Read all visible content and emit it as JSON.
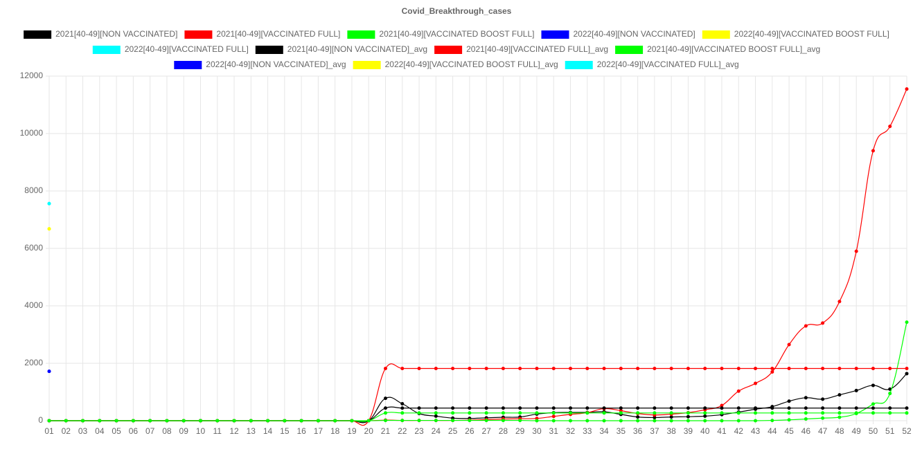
{
  "chart_data": {
    "type": "line",
    "title": "Covid_Breakthrough_cases",
    "categories": [
      "01",
      "02",
      "03",
      "04",
      "05",
      "06",
      "07",
      "08",
      "09",
      "10",
      "11",
      "12",
      "13",
      "14",
      "15",
      "16",
      "17",
      "18",
      "19",
      "20",
      "21",
      "22",
      "23",
      "24",
      "25",
      "26",
      "27",
      "28",
      "29",
      "30",
      "31",
      "32",
      "33",
      "34",
      "35",
      "36",
      "37",
      "38",
      "39",
      "40",
      "41",
      "42",
      "43",
      "44",
      "45",
      "46",
      "47",
      "48",
      "49",
      "50",
      "51",
      "52"
    ],
    "ylim": [
      0,
      12000
    ],
    "yticks": [
      0,
      2000,
      4000,
      6000,
      8000,
      10000,
      12000
    ],
    "grid": true,
    "series": [
      {
        "name": "2021[40-49][NON VACCINATED]",
        "color": "#000000",
        "values": [
          0,
          0,
          0,
          0,
          0,
          0,
          0,
          0,
          0,
          0,
          0,
          0,
          0,
          0,
          0,
          0,
          0,
          0,
          0,
          0,
          780,
          590,
          250,
          160,
          90,
          80,
          100,
          120,
          130,
          230,
          280,
          290,
          290,
          310,
          220,
          130,
          110,
          130,
          140,
          160,
          210,
          300,
          400,
          490,
          680,
          800,
          750,
          900,
          1050,
          1230,
          1100,
          1640
        ]
      },
      {
        "name": "2021[40-49][VACCINATED FULL]",
        "color": "#ff0000",
        "values": [
          0,
          0,
          0,
          0,
          0,
          0,
          0,
          0,
          0,
          0,
          0,
          0,
          0,
          0,
          0,
          0,
          0,
          0,
          0,
          0,
          20,
          10,
          10,
          10,
          10,
          20,
          40,
          60,
          70,
          80,
          150,
          220,
          280,
          420,
          350,
          250,
          200,
          230,
          280,
          380,
          530,
          1030,
          1300,
          1700,
          2650,
          3300,
          3400,
          4150,
          5900,
          9400,
          10250,
          11550
        ]
      },
      {
        "name": "2021[40-49][VACCINATED BOOST FULL]",
        "color": "#00ff00",
        "values": [
          0,
          0,
          0,
          0,
          0,
          0,
          0,
          0,
          0,
          0,
          0,
          0,
          0,
          0,
          0,
          0,
          0,
          0,
          0,
          0,
          10,
          10,
          10,
          10,
          10,
          10,
          10,
          10,
          10,
          0,
          0,
          0,
          0,
          0,
          0,
          0,
          0,
          0,
          0,
          0,
          0,
          0,
          0,
          10,
          30,
          60,
          90,
          120,
          250,
          580,
          950,
          3430
        ]
      },
      {
        "name": "2022[40-49][NON VACCINATED]",
        "color": "#0000ff",
        "values": [
          1720,
          null,
          null,
          null,
          null,
          null,
          null,
          null,
          null,
          null,
          null,
          null,
          null,
          null,
          null,
          null,
          null,
          null,
          null,
          null,
          null,
          null,
          null,
          null,
          null,
          null,
          null,
          null,
          null,
          null,
          null,
          null,
          null,
          null,
          null,
          null,
          null,
          null,
          null,
          null,
          null,
          null,
          null,
          null,
          null,
          null,
          null,
          null,
          null,
          null,
          null,
          null
        ]
      },
      {
        "name": "2022[40-49][VACCINATED BOOST FULL]",
        "color": "#ffff00",
        "values": [
          6680,
          null,
          null,
          null,
          null,
          null,
          null,
          null,
          null,
          null,
          null,
          null,
          null,
          null,
          null,
          null,
          null,
          null,
          null,
          null,
          null,
          null,
          null,
          null,
          null,
          null,
          null,
          null,
          null,
          null,
          null,
          null,
          null,
          null,
          null,
          null,
          null,
          null,
          null,
          null,
          null,
          null,
          null,
          null,
          null,
          null,
          null,
          null,
          null,
          null,
          null,
          null
        ]
      },
      {
        "name": "2022[40-49][VACCINATED FULL]",
        "color": "#00ffff",
        "values": [
          7560,
          null,
          null,
          null,
          null,
          null,
          null,
          null,
          null,
          null,
          null,
          null,
          null,
          null,
          null,
          null,
          null,
          null,
          null,
          null,
          null,
          null,
          null,
          null,
          null,
          null,
          null,
          null,
          null,
          null,
          null,
          null,
          null,
          null,
          null,
          null,
          null,
          null,
          null,
          null,
          null,
          null,
          null,
          null,
          null,
          null,
          null,
          null,
          null,
          null,
          null,
          null
        ]
      },
      {
        "name": "2021[40-49][NON VACCINATED]_avg",
        "color": "#000000",
        "values": [
          0,
          0,
          0,
          0,
          0,
          0,
          0,
          0,
          0,
          0,
          0,
          0,
          0,
          0,
          0,
          0,
          0,
          0,
          0,
          0,
          440,
          440,
          440,
          440,
          440,
          440,
          440,
          440,
          440,
          440,
          440,
          440,
          440,
          440,
          440,
          440,
          440,
          440,
          440,
          440,
          440,
          440,
          440,
          440,
          440,
          440,
          440,
          440,
          440,
          440,
          440,
          440
        ]
      },
      {
        "name": "2021[40-49][VACCINATED FULL]_avg",
        "color": "#ff0000",
        "values": [
          0,
          0,
          0,
          0,
          0,
          0,
          0,
          0,
          0,
          0,
          0,
          0,
          0,
          0,
          0,
          0,
          0,
          0,
          0,
          0,
          1820,
          1820,
          1820,
          1820,
          1820,
          1820,
          1820,
          1820,
          1820,
          1820,
          1820,
          1820,
          1820,
          1820,
          1820,
          1820,
          1820,
          1820,
          1820,
          1820,
          1820,
          1820,
          1820,
          1820,
          1820,
          1820,
          1820,
          1820,
          1820,
          1820,
          1820,
          1820
        ]
      },
      {
        "name": "2021[40-49][VACCINATED BOOST FULL]_avg",
        "color": "#00ff00",
        "values": [
          0,
          0,
          0,
          0,
          0,
          0,
          0,
          0,
          0,
          0,
          0,
          0,
          0,
          0,
          0,
          0,
          0,
          0,
          0,
          0,
          270,
          270,
          270,
          270,
          270,
          270,
          270,
          270,
          270,
          270,
          270,
          270,
          270,
          270,
          270,
          270,
          270,
          270,
          270,
          270,
          270,
          270,
          270,
          270,
          270,
          270,
          270,
          270,
          270,
          270,
          270,
          270
        ]
      },
      {
        "name": "2022[40-49][NON VACCINATED]_avg",
        "color": "#0000ff",
        "values": [
          1720,
          null,
          null,
          null,
          null,
          null,
          null,
          null,
          null,
          null,
          null,
          null,
          null,
          null,
          null,
          null,
          null,
          null,
          null,
          null,
          null,
          null,
          null,
          null,
          null,
          null,
          null,
          null,
          null,
          null,
          null,
          null,
          null,
          null,
          null,
          null,
          null,
          null,
          null,
          null,
          null,
          null,
          null,
          null,
          null,
          null,
          null,
          null,
          null,
          null,
          null,
          null
        ]
      },
      {
        "name": "2022[40-49][VACCINATED BOOST FULL]_avg",
        "color": "#ffff00",
        "values": [
          6680,
          null,
          null,
          null,
          null,
          null,
          null,
          null,
          null,
          null,
          null,
          null,
          null,
          null,
          null,
          null,
          null,
          null,
          null,
          null,
          null,
          null,
          null,
          null,
          null,
          null,
          null,
          null,
          null,
          null,
          null,
          null,
          null,
          null,
          null,
          null,
          null,
          null,
          null,
          null,
          null,
          null,
          null,
          null,
          null,
          null,
          null,
          null,
          null,
          null,
          null,
          null
        ]
      },
      {
        "name": "2022[40-49][VACCINATED FULL]_avg",
        "color": "#00ffff",
        "values": [
          7560,
          null,
          null,
          null,
          null,
          null,
          null,
          null,
          null,
          null,
          null,
          null,
          null,
          null,
          null,
          null,
          null,
          null,
          null,
          null,
          null,
          null,
          null,
          null,
          null,
          null,
          null,
          null,
          null,
          null,
          null,
          null,
          null,
          null,
          null,
          null,
          null,
          null,
          null,
          null,
          null,
          null,
          null,
          null,
          null,
          null,
          null,
          null,
          null,
          null,
          null,
          null
        ]
      }
    ]
  }
}
